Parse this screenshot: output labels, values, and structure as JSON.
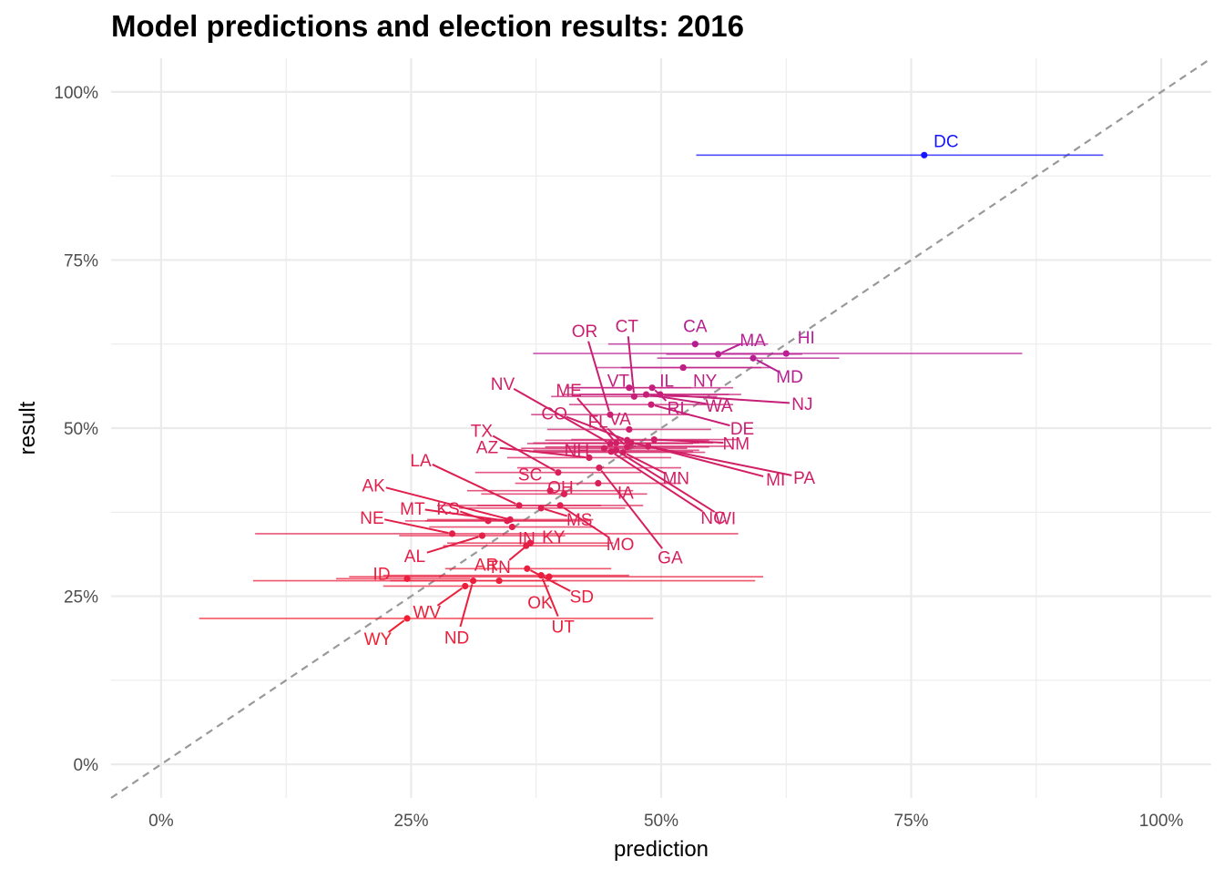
{
  "chart_data": {
    "type": "scatter",
    "title": "Model predictions and election results: 2016",
    "xlabel": "prediction",
    "ylabel": "result",
    "xlim": [
      -0.05,
      1.05
    ],
    "ylim": [
      -0.05,
      1.05
    ],
    "x_ticks": [
      {
        "value": 0,
        "label": "0%"
      },
      {
        "value": 0.25,
        "label": "25%"
      },
      {
        "value": 0.5,
        "label": "50%"
      },
      {
        "value": 0.75,
        "label": "75%"
      },
      {
        "value": 1.0,
        "label": "100%"
      }
    ],
    "y_ticks": [
      {
        "value": 0,
        "label": "0%"
      },
      {
        "value": 0.25,
        "label": "25%"
      },
      {
        "value": 0.5,
        "label": "50%"
      },
      {
        "value": 0.75,
        "label": "75%"
      },
      {
        "value": 1.0,
        "label": "100%"
      }
    ],
    "grid": true,
    "reference_line": "y = x (dashed)",
    "colors": {
      "low": "#ff1a1a",
      "high": "#0000ff",
      "gridline": "#ebebeb",
      "reference": "#999999"
    },
    "points": [
      {
        "label": "DC",
        "x": 0.763,
        "y": 0.906,
        "lo": 0.535,
        "hi": 0.942,
        "color": "#1414ff"
      },
      {
        "label": "HI",
        "x": 0.625,
        "y": 0.611,
        "lo": 0.372,
        "hi": 0.861,
        "color": "#bb1f96"
      },
      {
        "label": "CA",
        "x": 0.534,
        "y": 0.625,
        "lo": 0.447,
        "hi": 0.607,
        "color": "#b31f90"
      },
      {
        "label": "MA",
        "x": 0.557,
        "y": 0.61,
        "lo": 0.505,
        "hi": 0.641,
        "color": "#b81f91"
      },
      {
        "label": "MD",
        "x": 0.592,
        "y": 0.604,
        "lo": 0.496,
        "hi": 0.678,
        "color": "#b61f90"
      },
      {
        "label": "NY",
        "x": 0.522,
        "y": 0.59,
        "lo": 0.435,
        "hi": 0.61,
        "color": "#be1f85"
      },
      {
        "label": "IL",
        "x": 0.522,
        "y": 0.59,
        "lo": 0.46,
        "hi": 0.6,
        "color": "#be1f85"
      },
      {
        "label": "VT",
        "x": 0.468,
        "y": 0.56,
        "lo": 0.405,
        "hi": 0.53,
        "color": "#c21f7e"
      },
      {
        "label": "RI",
        "x": 0.491,
        "y": 0.56,
        "lo": 0.41,
        "hi": 0.572,
        "color": "#c21f7e"
      },
      {
        "label": "CT",
        "x": 0.473,
        "y": 0.547,
        "lo": 0.39,
        "hi": 0.556,
        "color": "#c51f78"
      },
      {
        "label": "WA",
        "x": 0.485,
        "y": 0.55,
        "lo": 0.402,
        "hi": 0.568,
        "color": "#c51f78"
      },
      {
        "label": "NJ",
        "x": 0.499,
        "y": 0.55,
        "lo": 0.418,
        "hi": 0.58,
        "color": "#c51f78"
      },
      {
        "label": "OR",
        "x": 0.449,
        "y": 0.52,
        "lo": 0.37,
        "hi": 0.528,
        "color": "#ca1f72"
      },
      {
        "label": "DE",
        "x": 0.49,
        "y": 0.535,
        "lo": 0.408,
        "hi": 0.572,
        "color": "#c81f74"
      },
      {
        "label": "NM",
        "x": 0.493,
        "y": 0.483,
        "lo": 0.41,
        "hi": 0.576,
        "color": "#d01f68"
      },
      {
        "label": "ME",
        "x": 0.455,
        "y": 0.478,
        "lo": 0.372,
        "hi": 0.538,
        "color": "#d11f66"
      },
      {
        "label": "CO",
        "x": 0.466,
        "y": 0.482,
        "lo": 0.384,
        "hi": 0.548,
        "color": "#d01f68"
      },
      {
        "label": "VA",
        "x": 0.468,
        "y": 0.498,
        "lo": 0.386,
        "hi": 0.55,
        "color": "#ce1f6c"
      },
      {
        "label": "NV",
        "x": 0.449,
        "y": 0.477,
        "lo": 0.366,
        "hi": 0.532,
        "color": "#d21f65"
      },
      {
        "label": "NH",
        "x": 0.443,
        "y": 0.47,
        "lo": 0.36,
        "hi": 0.526,
        "color": "#d31f63"
      },
      {
        "label": "FL",
        "x": 0.466,
        "y": 0.472,
        "lo": 0.384,
        "hi": 0.548,
        "color": "#d21f64"
      },
      {
        "label": "MN",
        "x": 0.462,
        "y": 0.464,
        "lo": 0.38,
        "hi": 0.544,
        "color": "#d31f62"
      },
      {
        "label": "MI",
        "x": 0.487,
        "y": 0.473,
        "lo": 0.404,
        "hi": 0.57,
        "color": "#d21f64"
      },
      {
        "label": "PA",
        "x": 0.47,
        "y": 0.478,
        "lo": 0.388,
        "hi": 0.552,
        "color": "#d11f66"
      },
      {
        "label": "WI",
        "x": 0.455,
        "y": 0.467,
        "lo": 0.372,
        "hi": 0.538,
        "color": "#d31f63"
      },
      {
        "label": "NC",
        "x": 0.45,
        "y": 0.465,
        "lo": 0.368,
        "hi": 0.532,
        "color": "#d31f62"
      },
      {
        "label": "AZ",
        "x": 0.428,
        "y": 0.456,
        "lo": 0.346,
        "hi": 0.51,
        "color": "#d51f5f"
      },
      {
        "label": "GA",
        "x": 0.438,
        "y": 0.441,
        "lo": 0.356,
        "hi": 0.52,
        "color": "#d71f5c"
      },
      {
        "label": "IA",
        "x": 0.437,
        "y": 0.418,
        "lo": 0.354,
        "hi": 0.52,
        "color": "#da1f57"
      },
      {
        "label": "OH",
        "x": 0.403,
        "y": 0.402,
        "lo": 0.32,
        "hi": 0.486,
        "color": "#dc1f54"
      },
      {
        "label": "TX",
        "x": 0.397,
        "y": 0.434,
        "lo": 0.314,
        "hi": 0.48,
        "color": "#d81f5a"
      },
      {
        "label": "SC",
        "x": 0.389,
        "y": 0.407,
        "lo": 0.306,
        "hi": 0.472,
        "color": "#dc1f54"
      },
      {
        "label": "MS",
        "x": 0.38,
        "y": 0.381,
        "lo": 0.298,
        "hi": 0.464,
        "color": "#df1f4f"
      },
      {
        "label": "MO",
        "x": 0.399,
        "y": 0.385,
        "lo": 0.316,
        "hi": 0.482,
        "color": "#de1f50"
      },
      {
        "label": "LA",
        "x": 0.358,
        "y": 0.385,
        "lo": 0.276,
        "hi": 0.44,
        "color": "#de1f50"
      },
      {
        "label": "IN",
        "x": 0.351,
        "y": 0.353,
        "lo": 0.268,
        "hi": 0.434,
        "color": "#e21f4a"
      },
      {
        "label": "AK",
        "x": 0.349,
        "y": 0.364,
        "lo": 0.266,
        "hi": 0.432,
        "color": "#e11f4c"
      },
      {
        "label": "KS",
        "x": 0.327,
        "y": 0.362,
        "lo": 0.244,
        "hi": 0.41,
        "color": "#e11f4c"
      },
      {
        "label": "MT",
        "x": 0.346,
        "y": 0.362,
        "lo": 0.264,
        "hi": 0.428,
        "color": "#e11f4c"
      },
      {
        "label": "NE",
        "x": 0.291,
        "y": 0.343,
        "lo": 0.094,
        "hi": 0.577,
        "color": "#e31f48"
      },
      {
        "label": "AL",
        "x": 0.321,
        "y": 0.34,
        "lo": 0.238,
        "hi": 0.404,
        "color": "#e41f47"
      },
      {
        "label": "TN",
        "x": 0.369,
        "y": 0.329,
        "lo": 0.286,
        "hi": 0.452,
        "color": "#e51f45"
      },
      {
        "label": "KY",
        "x": 0.365,
        "y": 0.325,
        "lo": 0.282,
        "hi": 0.448,
        "color": "#e61f44"
      },
      {
        "label": "SD",
        "x": 0.366,
        "y": 0.291,
        "lo": 0.284,
        "hi": 0.45,
        "color": "#e91f3f"
      },
      {
        "label": "OK",
        "x": 0.388,
        "y": 0.279,
        "lo": 0.188,
        "hi": 0.602,
        "color": "#ea1f3d"
      },
      {
        "label": "AR",
        "x": 0.338,
        "y": 0.273,
        "lo": 0.092,
        "hi": 0.594,
        "color": "#eb1f3b"
      },
      {
        "label": "ID",
        "x": 0.246,
        "y": 0.276,
        "lo": 0.175,
        "hi": 0.309,
        "color": "#eb1f3c"
      },
      {
        "label": "UT",
        "x": 0.38,
        "y": 0.281,
        "lo": 0.222,
        "hi": 0.468,
        "color": "#ea1f3e"
      },
      {
        "label": "ND",
        "x": 0.312,
        "y": 0.273,
        "lo": 0.229,
        "hi": 0.396,
        "color": "#eb1f3b"
      },
      {
        "label": "WV",
        "x": 0.304,
        "y": 0.265,
        "lo": 0.222,
        "hi": 0.388,
        "color": "#ec1f39"
      },
      {
        "label": "WY",
        "x": 0.246,
        "y": 0.217,
        "lo": 0.038,
        "hi": 0.492,
        "color": "#f11f31"
      }
    ]
  }
}
